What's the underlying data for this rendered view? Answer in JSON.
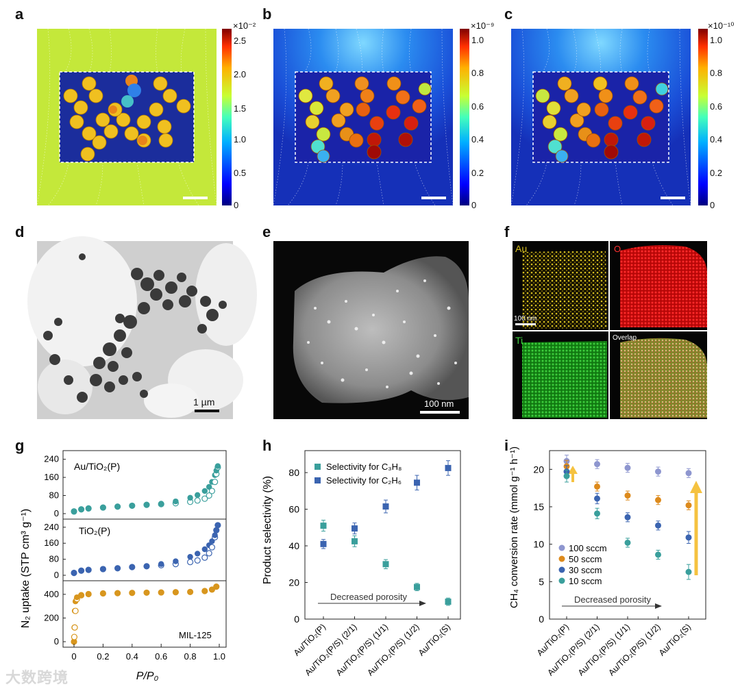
{
  "panel_labels": [
    "a",
    "b",
    "c",
    "d",
    "e",
    "f",
    "g",
    "h",
    "i"
  ],
  "colorbars": [
    {
      "exponent": "×10⁻²",
      "ticks": [
        "2.5",
        "2.0",
        "1.5",
        "1.0",
        "0.5",
        "0"
      ]
    },
    {
      "exponent": "×10⁻⁹",
      "ticks": [
        "1.0",
        "0.8",
        "0.6",
        "0.4",
        "0.2",
        "0"
      ]
    },
    {
      "exponent": "×10⁻¹⁰",
      "ticks": [
        "1.0",
        "0.8",
        "0.6",
        "0.4",
        "0.2",
        "0"
      ]
    }
  ],
  "colors": {
    "teal": "#3a9f9c",
    "blue": "#3b64b0",
    "gold": "#d8961e",
    "lavender": "#8e96cf",
    "orange": "#dd8a1c"
  },
  "scale_bars": {
    "d": "1 µm",
    "e": "100 nm",
    "f": "100 nm"
  },
  "eds": {
    "au": "Au",
    "o": "O",
    "ti": "Ti",
    "overlap": "Overlap"
  },
  "panel_g": {
    "ylabel": "N₂ uptake (STP cm³ g⁻¹)",
    "xlabel": "P/P₀",
    "x_ticks": [
      "0",
      "0.2",
      "0.4",
      "0.6",
      "0.8",
      "1.0"
    ],
    "subpanels": [
      {
        "name": "Au/TiO₂(P)",
        "ticks": [
          "240",
          "160",
          "80",
          "0"
        ]
      },
      {
        "name": "TiO₂(P)",
        "ticks": [
          "240",
          "160",
          "80",
          "0"
        ]
      },
      {
        "name": "MIL-125",
        "ticks": [
          "400",
          "200",
          "0"
        ]
      }
    ]
  },
  "chart_data": [
    {
      "type": "line",
      "title": "",
      "xlabel": "P/P₀",
      "ylabel": "N₂ uptake (STP cm³ g⁻¹)",
      "subplots": [
        {
          "name": "Au/TiO₂(P)",
          "ylim": [
            0,
            260
          ],
          "x": [
            0.0,
            0.05,
            0.1,
            0.2,
            0.3,
            0.4,
            0.5,
            0.6,
            0.7,
            0.8,
            0.85,
            0.9,
            0.93,
            0.95,
            0.97,
            0.98,
            0.99
          ],
          "adsorption": [
            8,
            18,
            22,
            26,
            30,
            34,
            38,
            44,
            54,
            70,
            82,
            100,
            118,
            140,
            170,
            190,
            210
          ],
          "desorption": [
            10,
            19,
            23,
            27,
            31,
            35,
            39,
            42,
            46,
            52,
            58,
            66,
            80,
            100,
            140,
            175,
            205
          ]
        },
        {
          "name": "TiO₂(P)",
          "ylim": [
            0,
            260
          ],
          "x": [
            0.0,
            0.05,
            0.1,
            0.2,
            0.3,
            0.4,
            0.5,
            0.6,
            0.7,
            0.8,
            0.85,
            0.9,
            0.93,
            0.95,
            0.97,
            0.98,
            0.99
          ],
          "adsorption": [
            10,
            22,
            26,
            30,
            34,
            40,
            46,
            56,
            70,
            92,
            108,
            130,
            150,
            170,
            200,
            225,
            250
          ],
          "desorption": [
            12,
            23,
            27,
            31,
            35,
            41,
            45,
            50,
            56,
            66,
            74,
            88,
            110,
            140,
            190,
            225,
            250
          ]
        },
        {
          "name": "MIL-125",
          "ylim": [
            0,
            480
          ],
          "x": [
            0.0,
            0.002,
            0.005,
            0.01,
            0.02,
            0.05,
            0.1,
            0.2,
            0.3,
            0.4,
            0.5,
            0.6,
            0.7,
            0.8,
            0.9,
            0.95,
            0.98
          ],
          "adsorption": [
            0,
            120,
            260,
            340,
            375,
            395,
            402,
            408,
            410,
            412,
            414,
            416,
            418,
            420,
            428,
            440,
            465
          ],
          "desorption": [
            0,
            40,
            120,
            260,
            360,
            392,
            402,
            408,
            410,
            412,
            414,
            416,
            418,
            420,
            428,
            440,
            465
          ]
        }
      ]
    },
    {
      "type": "scatter",
      "title": "",
      "xlabel": "",
      "ylabel": "Product selectivity (%)",
      "ylim": [
        0,
        92
      ],
      "yticks": [
        "0",
        "20",
        "40",
        "60",
        "80"
      ],
      "categories": [
        "Au/TiO₂(P)",
        "Au/TiO₂(P/S) (2/1)",
        "Au/TiO₂(P/S) (1/1)",
        "Au/TiO₂(P/S) (1/2)",
        "Au/TiO₂(S)"
      ],
      "annotation": "Decreased porosity",
      "series": [
        {
          "name": "Selectivity for C₃H₈",
          "values": [
            51,
            42.5,
            30,
            17.5,
            9.5
          ],
          "errors": [
            3,
            3,
            2.5,
            2,
            2
          ]
        },
        {
          "name": "Selectivity for C₂H₆",
          "values": [
            41,
            49.5,
            61.5,
            74.5,
            82.5
          ],
          "errors": [
            2.5,
            3,
            3.5,
            4,
            4
          ]
        }
      ]
    },
    {
      "type": "scatter",
      "title": "",
      "xlabel": "",
      "ylabel": "CH₄ conversion rate (mmol g⁻¹ h⁻¹)",
      "ylim": [
        0,
        22.5
      ],
      "yticks": [
        "0",
        "5",
        "10",
        "15",
        "20"
      ],
      "categories": [
        "Au/TiO₂(P)",
        "Au/TiO₂(P/S) (2/1)",
        "Au/TiO₂(P/S) (1/1)",
        "Au/TiO₂(P/S) (1/2)",
        "Au/TiO₂(S)"
      ],
      "annotation": "Decreased porosity",
      "series": [
        {
          "name": "100 sccm",
          "values": [
            21.1,
            20.7,
            20.2,
            19.7,
            19.5
          ],
          "errors": [
            0.8,
            0.6,
            0.6,
            0.6,
            0.6
          ]
        },
        {
          "name": "50 sccm",
          "values": [
            20.4,
            17.7,
            16.5,
            15.9,
            15.2
          ],
          "errors": [
            0.8,
            0.6,
            0.6,
            0.6,
            0.6
          ]
        },
        {
          "name": "30 sccm",
          "values": [
            19.7,
            16.1,
            13.6,
            12.5,
            10.9
          ],
          "errors": [
            0.8,
            0.7,
            0.6,
            0.6,
            0.8
          ]
        },
        {
          "name": "10 sccm",
          "values": [
            19.1,
            14.1,
            10.2,
            8.6,
            6.3
          ],
          "errors": [
            0.8,
            0.7,
            0.6,
            0.6,
            1.0
          ]
        }
      ]
    }
  ],
  "watermark": "大数跨境"
}
